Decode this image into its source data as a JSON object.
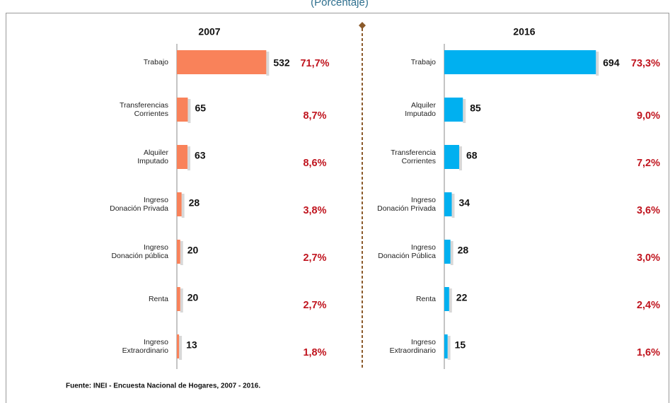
{
  "subtitle": "(Porcentaje)",
  "source": "Fuente: INEI - Encuesta Nacional de Hogares, 2007 - 2016.",
  "chart_data": [
    {
      "type": "bar",
      "title": "2007",
      "color": "#f9825a",
      "xlim": [
        0,
        800
      ],
      "categories": [
        [
          "Trabajo"
        ],
        [
          "Transferencias",
          "Corrientes"
        ],
        [
          "Alquiler",
          "Imputado"
        ],
        [
          "Ingreso",
          "Donación Privada"
        ],
        [
          "Ingreso",
          "Donación pública"
        ],
        [
          "Renta"
        ],
        [
          "Ingreso",
          "Extraordinario"
        ]
      ],
      "values": [
        532,
        65,
        63,
        28,
        20,
        20,
        13
      ],
      "shares": [
        "71,7%",
        "8,7%",
        "8,6%",
        "3,8%",
        "2,7%",
        "2,7%",
        "1,8%"
      ]
    },
    {
      "type": "bar",
      "title": "2016",
      "color": "#00b0f0",
      "xlim": [
        0,
        800
      ],
      "categories": [
        [
          "Trabajo"
        ],
        [
          "Alquiler",
          "Imputado"
        ],
        [
          "Transferencia",
          "Corrientes"
        ],
        [
          "Ingreso",
          "Donación Privada"
        ],
        [
          "Ingreso",
          "Donación Pública"
        ],
        [
          "Renta"
        ],
        [
          "Ingreso",
          "Extraordinario"
        ]
      ],
      "values": [
        694,
        85,
        68,
        34,
        28,
        22,
        15
      ],
      "shares": [
        "73,3%",
        "9,0%",
        "7,2%",
        "3,6%",
        "3,0%",
        "2,4%",
        "1,6%"
      ]
    }
  ]
}
